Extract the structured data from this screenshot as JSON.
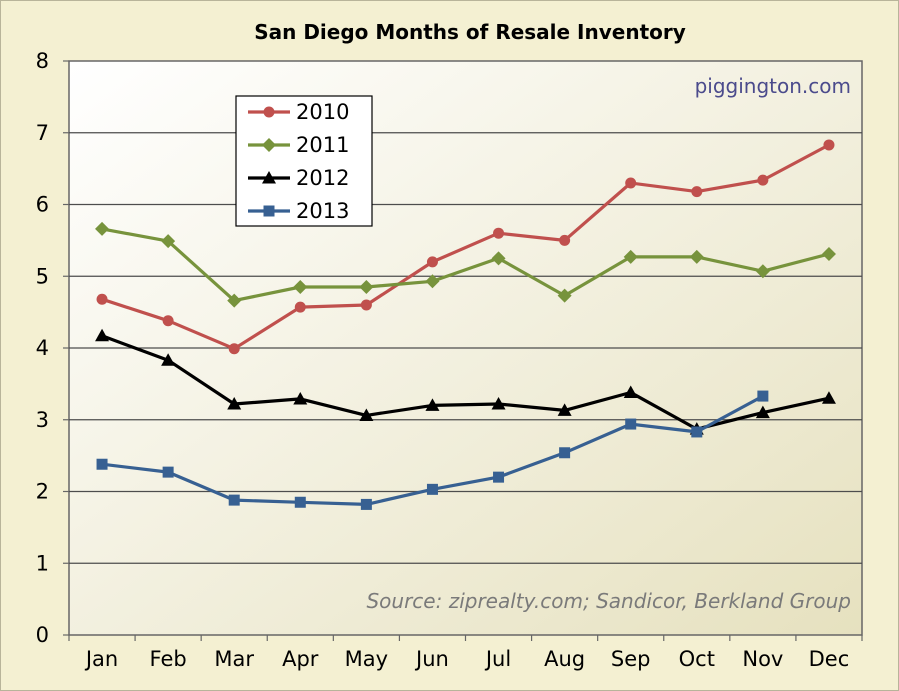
{
  "chart_data": {
    "type": "line",
    "title": "San Diego Months of Resale Inventory",
    "xlabel": "",
    "ylabel": "",
    "categories": [
      "Jan",
      "Feb",
      "Mar",
      "Apr",
      "May",
      "Jun",
      "Jul",
      "Aug",
      "Sep",
      "Oct",
      "Nov",
      "Dec"
    ],
    "ylim": [
      0,
      8
    ],
    "yticks": [
      "0",
      "1",
      "2",
      "3",
      "4",
      "5",
      "6",
      "7",
      "8"
    ],
    "grid": "horizontal",
    "legend_position": "top-left",
    "watermark": "piggington.com",
    "source": "Source: ziprealty.com; Sandicor, Berkland Group",
    "series": [
      {
        "name": "2010",
        "color": "#c0504d",
        "marker": "circle",
        "values": [
          4.68,
          4.38,
          3.99,
          4.57,
          4.6,
          5.2,
          5.6,
          5.5,
          6.3,
          6.18,
          6.34,
          6.83
        ]
      },
      {
        "name": "2011",
        "color": "#77933c",
        "marker": "diamond",
        "values": [
          5.66,
          5.49,
          4.66,
          4.85,
          4.85,
          4.93,
          5.25,
          4.73,
          5.27,
          5.27,
          5.07,
          5.31
        ]
      },
      {
        "name": "2012",
        "color": "#000000",
        "marker": "triangle",
        "values": [
          4.17,
          3.83,
          3.22,
          3.29,
          3.06,
          3.2,
          3.22,
          3.13,
          3.38,
          2.87,
          3.1,
          3.3
        ]
      },
      {
        "name": "2013",
        "color": "#376092",
        "marker": "square",
        "values": [
          2.38,
          2.27,
          1.88,
          1.85,
          1.82,
          2.03,
          2.2,
          2.54,
          2.94,
          2.83,
          3.33,
          null
        ]
      }
    ]
  }
}
